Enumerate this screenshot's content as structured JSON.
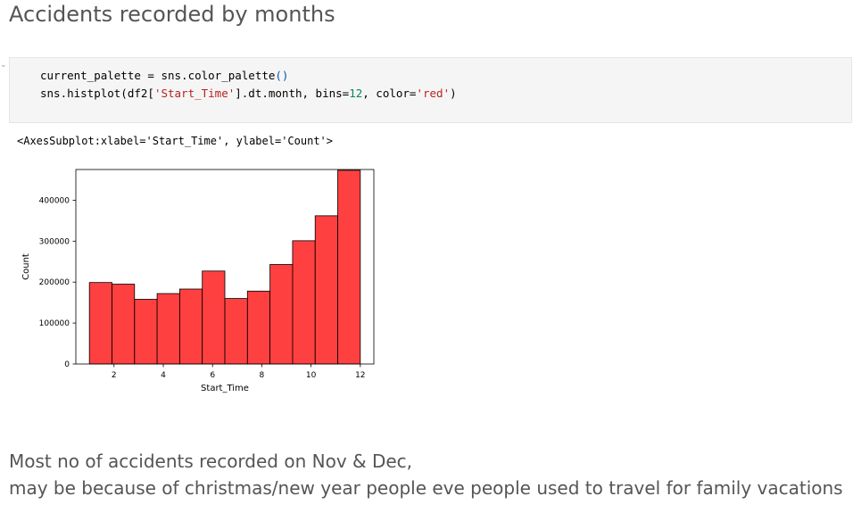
{
  "heading": "Accidents recorded by months",
  "code_cell": {
    "line1": {
      "lhs": "current_palette = sns.color_palette",
      "paren": "()"
    },
    "line2": {
      "a": "sns.histplot(df2[",
      "str1": "'Start_Time'",
      "b": "].dt.month, bins=",
      "num": "12",
      "c": ", color=",
      "str2": "'red'",
      "d": ")"
    }
  },
  "output_text": "<AxesSubplot:xlabel='Start_Time', ylabel='Count'>",
  "chart_data": {
    "type": "bar",
    "xlabel": "Start_Time",
    "ylabel": "Count",
    "xlim": [
      0.45,
      12.55
    ],
    "ylim": [
      0,
      475000
    ],
    "xticks": [
      2,
      4,
      6,
      8,
      10,
      12
    ],
    "yticks": [
      0,
      100000,
      200000,
      300000,
      400000
    ],
    "bar_color": "#ff0000",
    "bar_alpha": 0.75,
    "bins": [
      {
        "start": 1.0,
        "end": 1.917,
        "value": 199000
      },
      {
        "start": 1.917,
        "end": 2.833,
        "value": 195000
      },
      {
        "start": 2.833,
        "end": 3.75,
        "value": 158000
      },
      {
        "start": 3.75,
        "end": 4.667,
        "value": 172000
      },
      {
        "start": 4.667,
        "end": 5.583,
        "value": 183000
      },
      {
        "start": 5.583,
        "end": 6.5,
        "value": 227000
      },
      {
        "start": 6.5,
        "end": 7.417,
        "value": 160000
      },
      {
        "start": 7.417,
        "end": 8.333,
        "value": 178000
      },
      {
        "start": 8.333,
        "end": 9.25,
        "value": 243000
      },
      {
        "start": 9.25,
        "end": 10.167,
        "value": 301000
      },
      {
        "start": 10.167,
        "end": 11.083,
        "value": 362000
      },
      {
        "start": 11.083,
        "end": 12.0,
        "value": 473000
      }
    ]
  },
  "markdown": {
    "line1": "Most no of accidents recorded on Nov & Dec,",
    "line2": "may be because of christmas/new year people eve people used to travel for family vacations"
  }
}
